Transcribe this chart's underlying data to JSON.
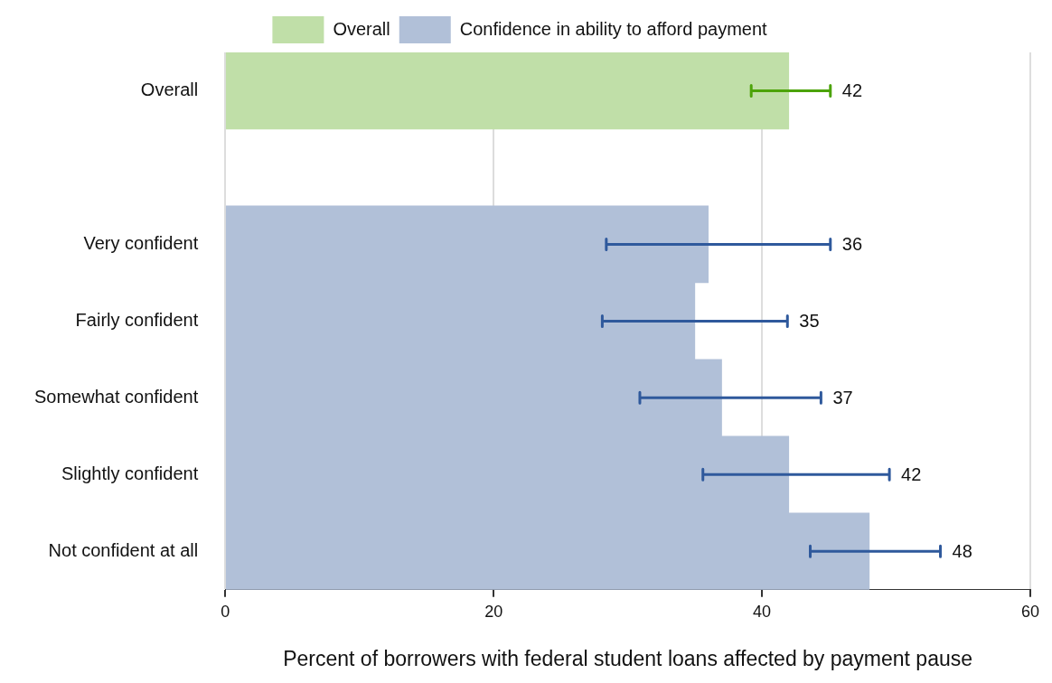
{
  "chart_data": {
    "type": "bar",
    "orientation": "horizontal",
    "xlabel": "Percent of borrowers with federal student loans affected by payment pause",
    "categories": [
      "Overall",
      null,
      "Very confident",
      "Fairly confident",
      "Somewhat confident",
      "Slightly confident",
      "Not confident at all"
    ],
    "series": [
      {
        "name": "Overall",
        "color": "#c0dfa8",
        "values": [
          42,
          null,
          null,
          null,
          null,
          null,
          null
        ],
        "errors": [
          [
            39.2,
            45.1
          ],
          null,
          null,
          null,
          null,
          null,
          null
        ]
      },
      {
        "name": "Confidence in ability to afford payment",
        "color": "#b1c0d8",
        "values": [
          null,
          null,
          36,
          35,
          37,
          42,
          48
        ],
        "errors": [
          null,
          null,
          [
            28.4,
            45.1
          ],
          [
            28.1,
            41.9
          ],
          [
            30.9,
            44.4
          ],
          [
            35.6,
            49.5
          ],
          [
            43.6,
            53.3
          ]
        ]
      }
    ],
    "annotations": [
      {
        "text": "42",
        "x": 45.1,
        "y": "Overall"
      },
      {
        "text": "36",
        "x": 45.1,
        "y": "Very confident"
      },
      {
        "text": "35",
        "x": 41.9,
        "y": "Fairly confident"
      },
      {
        "text": "37",
        "x": 44.4,
        "y": "Somewhat confident"
      },
      {
        "text": "42",
        "x": 49.5,
        "y": "Slightly confident"
      },
      {
        "text": "48",
        "x": 53.3,
        "y": "Not confident at all"
      }
    ],
    "xlim": [
      0,
      60
    ],
    "xticks": [
      0,
      20,
      40,
      60
    ],
    "grid": "x",
    "legend": "top",
    "stacked": true
  }
}
